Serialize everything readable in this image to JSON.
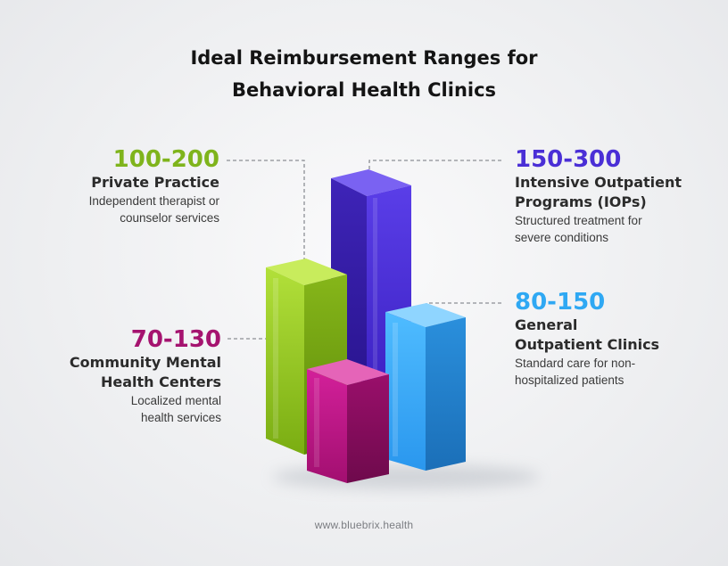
{
  "title_line1": "Ideal Reimbursement Ranges for",
  "title_line2": "Behavioral Health Clinics",
  "footer": "www.bluebrix.health",
  "chart_data": {
    "type": "bar",
    "title": "Ideal Reimbursement Ranges for Behavioral Health Clinics",
    "grid": false,
    "style": "3d-columns",
    "series": [
      {
        "range_label": "100-200",
        "low": 100,
        "high": 200,
        "name_lines": [
          "Private Practice"
        ],
        "desc_lines": [
          "Independent therapist or",
          "counselor services"
        ],
        "color": "#8dc11f"
      },
      {
        "range_label": "150-300",
        "low": 150,
        "high": 300,
        "name_lines": [
          "Intensive Outpatient",
          "Programs (IOPs)"
        ],
        "desc_lines": [
          "Structured treatment for",
          "severe conditions"
        ],
        "color": "#4a2fd6"
      },
      {
        "range_label": "70-130",
        "low": 70,
        "high": 130,
        "name_lines": [
          "Community Mental",
          "Health Centers"
        ],
        "desc_lines": [
          "Localized mental",
          "health services"
        ],
        "color": "#b0137a"
      },
      {
        "range_label": "80-150",
        "low": 80,
        "high": 150,
        "name_lines": [
          "General",
          "Outpatient Clinics"
        ],
        "desc_lines": [
          "Standard care for non-",
          "hospitalized patients"
        ],
        "color": "#2fa8f3"
      }
    ]
  }
}
